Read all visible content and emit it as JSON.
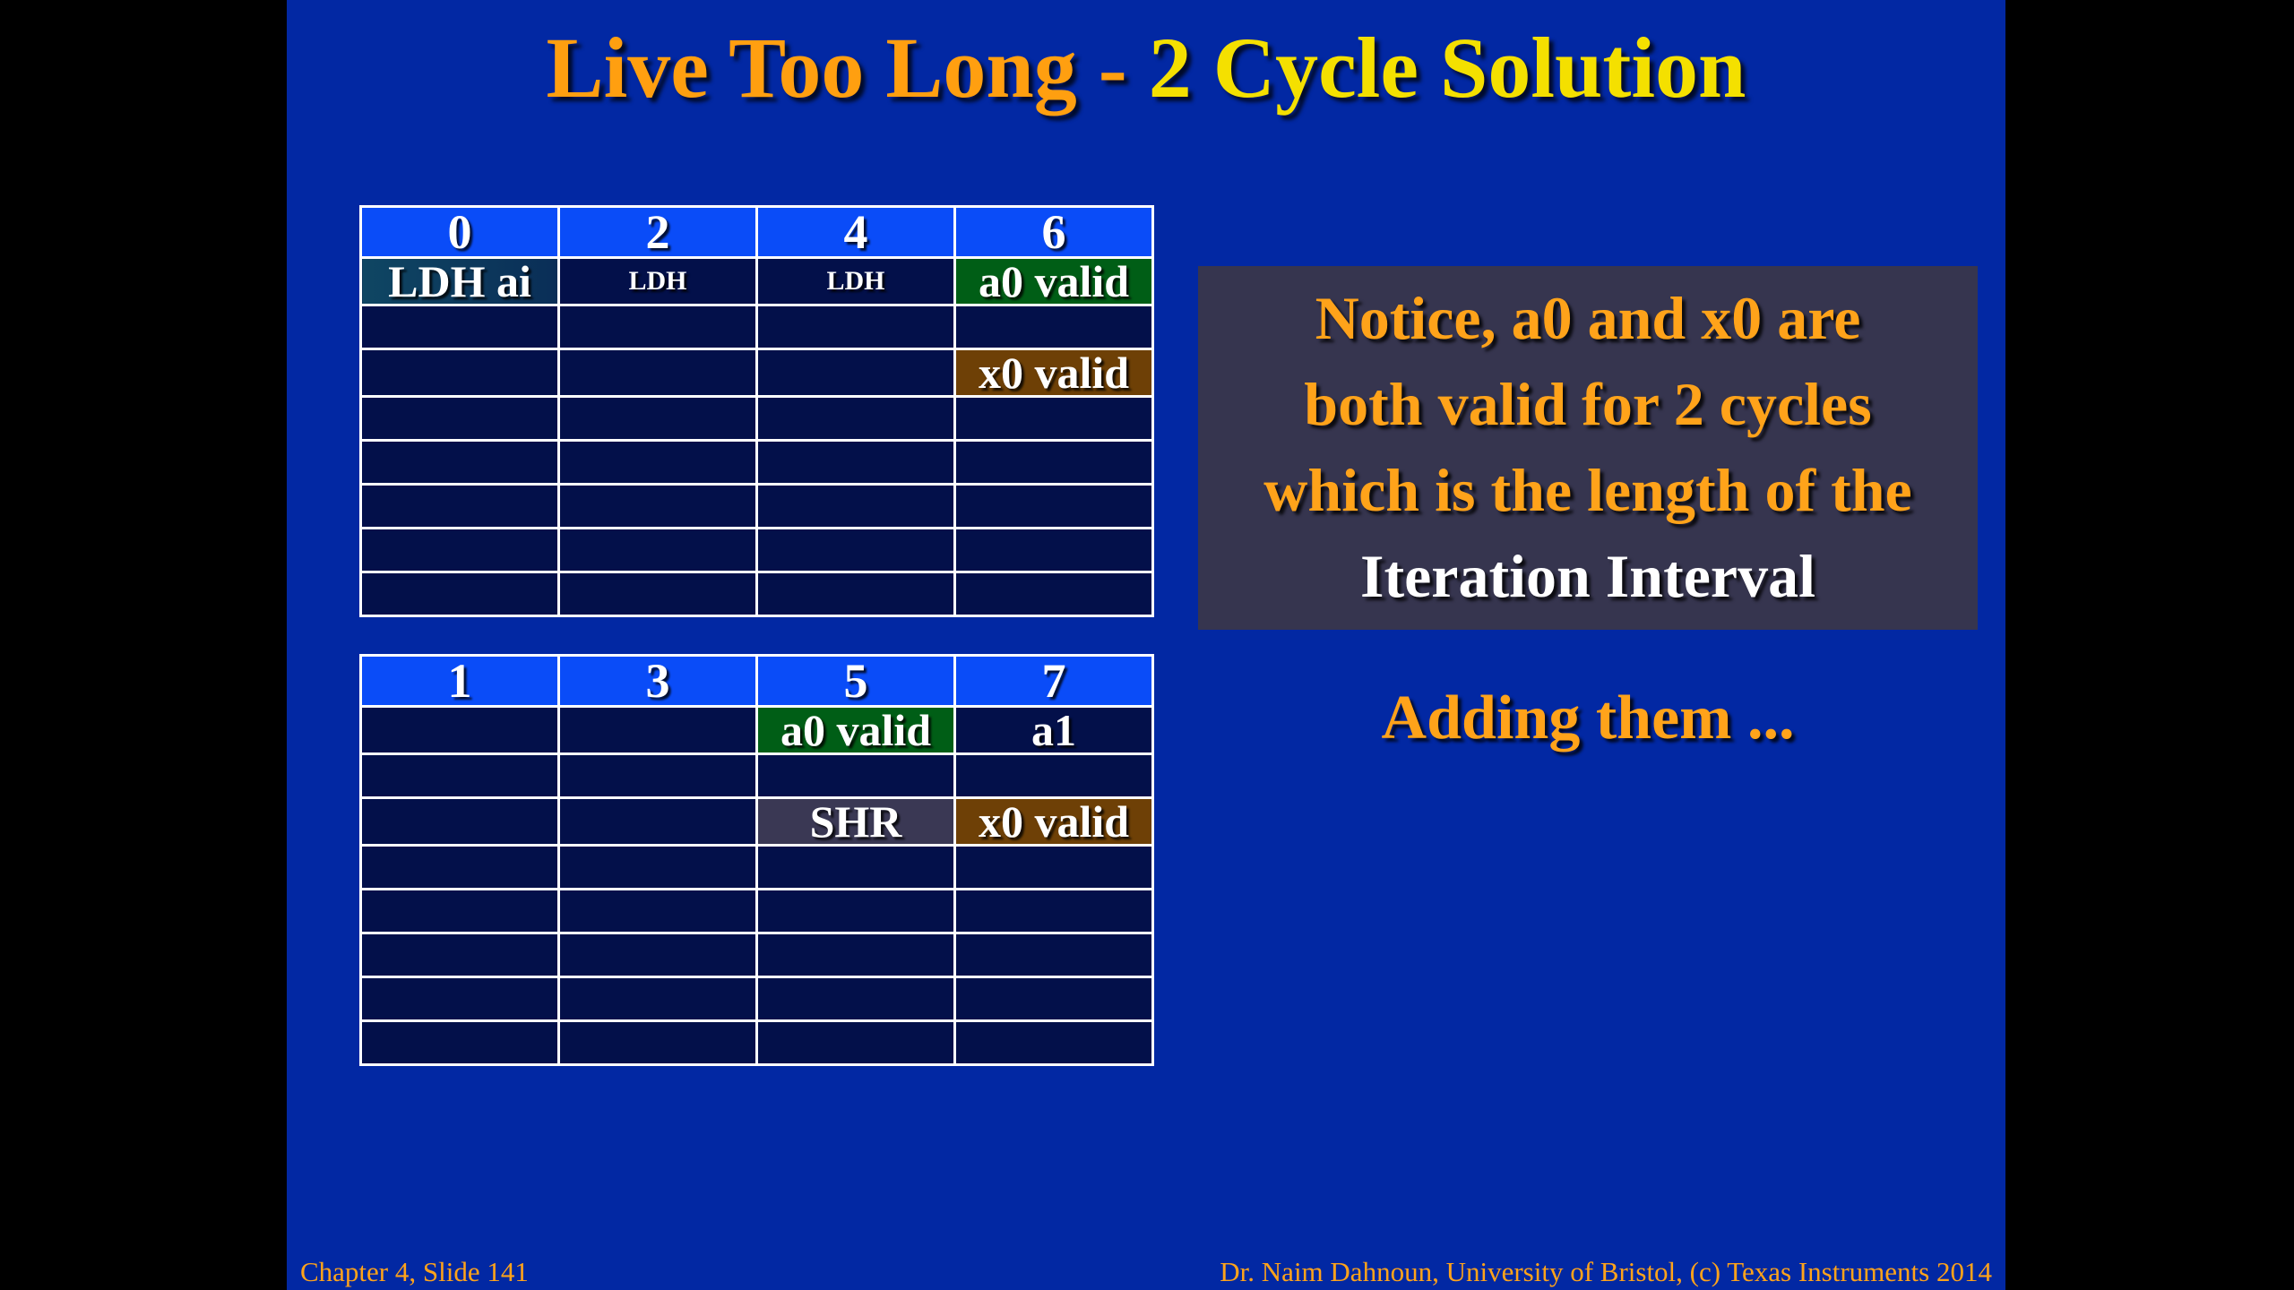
{
  "title": {
    "part1": "Live Too Long - ",
    "part2": "2 Cycle Solution"
  },
  "table_top": {
    "headers": [
      "0",
      "2",
      "4",
      "6"
    ],
    "rows": [
      [
        "LDH ai",
        "LDH",
        "LDH",
        "a0 valid"
      ],
      [
        "",
        "",
        "",
        ""
      ],
      [
        "",
        "",
        "",
        "x0 valid"
      ],
      [
        "",
        "",
        "",
        ""
      ],
      [
        "",
        "",
        "",
        ""
      ],
      [
        "",
        "",
        "",
        ""
      ],
      [
        "",
        "",
        "",
        ""
      ],
      [
        "",
        "",
        "",
        ""
      ]
    ]
  },
  "table_bottom": {
    "headers": [
      "1",
      "3",
      "5",
      "7"
    ],
    "rows": [
      [
        "",
        "",
        "a0 valid",
        "a1"
      ],
      [
        "",
        "",
        "",
        ""
      ],
      [
        "",
        "",
        "SHR",
        "x0 valid"
      ],
      [
        "",
        "",
        "",
        ""
      ],
      [
        "",
        "",
        "",
        ""
      ],
      [
        "",
        "",
        "",
        ""
      ],
      [
        "",
        "",
        "",
        ""
      ],
      [
        "",
        "",
        "",
        ""
      ]
    ]
  },
  "notice": {
    "line1": "Notice, a0 and x0 are",
    "line2": "both valid for 2 cycles",
    "line3": "which is the length of the",
    "line4": "Iteration Interval"
  },
  "adding": "Adding them ...",
  "footer": {
    "left": "Chapter 4, Slide 141",
    "right": "Dr. Naim Dahnoun, University of Bristol,  (c) Texas Instruments 2014"
  },
  "colors": {
    "background": "#0228a3",
    "header_cell": "#0a4cf8",
    "cell": "#03104a",
    "valid_a0": "#005e16",
    "valid_x0": "#6e4006",
    "shr": "#3a3854",
    "accent_orange": "#ffa31a",
    "accent_yellow": "#f4e000"
  }
}
